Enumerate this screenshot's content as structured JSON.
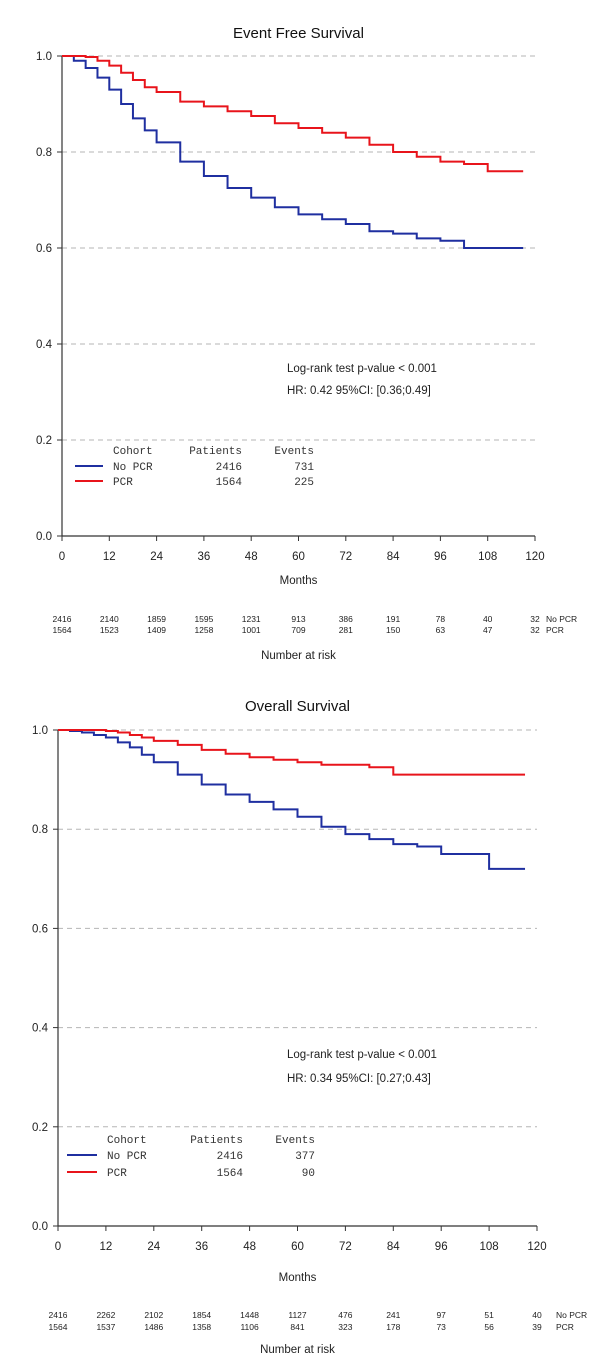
{
  "chart_data": [
    {
      "type": "line",
      "title": "Event Free Survival",
      "xlabel": "Months",
      "ylabel": "",
      "xlim": [
        0,
        120
      ],
      "ylim": [
        0,
        1
      ],
      "x_ticks": [
        "0",
        "12",
        "24",
        "36",
        "48",
        "60",
        "72",
        "84",
        "96",
        "108",
        "120"
      ],
      "y_ticks": [
        "0.0",
        "0.2",
        "0.4",
        "0.6",
        "0.8",
        "1.0"
      ],
      "grid": "horizontal dashed",
      "annotations": [
        "Log-rank test p-value < 0.001",
        "HR: 0.42  95%CI: [0.36;0.49]"
      ],
      "legend": {
        "header": [
          "Cohort",
          "Patients",
          "Events"
        ],
        "rows": [
          {
            "cohort": "No PCR",
            "patients": "2416",
            "events": "731",
            "color": "#1f2fa0"
          },
          {
            "cohort": "PCR",
            "patients": "1564",
            "events": "225",
            "color": "#e8141b"
          }
        ]
      },
      "series": [
        {
          "name": "No PCR",
          "color": "#1f2fa0",
          "x": [
            0,
            3,
            6,
            9,
            12,
            15,
            18,
            21,
            24,
            30,
            36,
            42,
            48,
            54,
            60,
            66,
            72,
            78,
            84,
            90,
            96,
            102,
            108,
            114,
            117
          ],
          "y": [
            1.0,
            0.99,
            0.975,
            0.955,
            0.93,
            0.9,
            0.87,
            0.845,
            0.82,
            0.78,
            0.75,
            0.725,
            0.705,
            0.685,
            0.67,
            0.66,
            0.65,
            0.635,
            0.63,
            0.62,
            0.615,
            0.6,
            0.6,
            0.6,
            0.6
          ]
        },
        {
          "name": "PCR",
          "color": "#e8141b",
          "x": [
            0,
            3,
            6,
            9,
            12,
            15,
            18,
            21,
            24,
            30,
            36,
            42,
            48,
            54,
            60,
            66,
            72,
            78,
            84,
            90,
            96,
            102,
            108,
            114,
            117
          ],
          "y": [
            1.0,
            1.0,
            0.998,
            0.99,
            0.98,
            0.965,
            0.95,
            0.935,
            0.925,
            0.905,
            0.895,
            0.885,
            0.875,
            0.86,
            0.85,
            0.84,
            0.83,
            0.815,
            0.8,
            0.79,
            0.78,
            0.775,
            0.76,
            0.76,
            0.76
          ]
        }
      ],
      "risk_table": {
        "label": "Number at risk",
        "rows": [
          {
            "name": "No PCR",
            "values": [
              "2416",
              "2140",
              "1859",
              "1595",
              "1231",
              "913",
              "386",
              "191",
              "78",
              "40",
              "32"
            ]
          },
          {
            "name": "PCR",
            "values": [
              "1564",
              "1523",
              "1409",
              "1258",
              "1001",
              "709",
              "281",
              "150",
              "63",
              "47",
              "32"
            ]
          }
        ]
      }
    },
    {
      "type": "line",
      "title": "Overall Survival",
      "xlabel": "Months",
      "ylabel": "",
      "xlim": [
        0,
        120
      ],
      "ylim": [
        0,
        1
      ],
      "x_ticks": [
        "0",
        "12",
        "24",
        "36",
        "48",
        "60",
        "72",
        "84",
        "96",
        "108",
        "120"
      ],
      "y_ticks": [
        "0.0",
        "0.2",
        "0.4",
        "0.6",
        "0.8",
        "1.0"
      ],
      "grid": "horizontal dashed",
      "annotations": [
        "Log-rank test p-value < 0.001",
        "HR: 0.34  95%CI: [0.27;0.43]"
      ],
      "legend": {
        "header": [
          "Cohort",
          "Patients",
          "Events"
        ],
        "rows": [
          {
            "cohort": "No PCR",
            "patients": "2416",
            "events": "377",
            "color": "#1f2fa0"
          },
          {
            "cohort": "PCR",
            "patients": "1564",
            "events": "90",
            "color": "#e8141b"
          }
        ]
      },
      "series": [
        {
          "name": "No PCR",
          "color": "#1f2fa0",
          "x": [
            0,
            3,
            6,
            9,
            12,
            15,
            18,
            21,
            24,
            30,
            36,
            42,
            48,
            54,
            60,
            66,
            72,
            78,
            84,
            90,
            96,
            102,
            105,
            108,
            114,
            117
          ],
          "y": [
            1.0,
            0.998,
            0.995,
            0.99,
            0.985,
            0.975,
            0.965,
            0.95,
            0.935,
            0.91,
            0.89,
            0.87,
            0.855,
            0.84,
            0.825,
            0.805,
            0.79,
            0.78,
            0.77,
            0.765,
            0.75,
            0.75,
            0.75,
            0.72,
            0.72,
            0.72
          ]
        },
        {
          "name": "PCR",
          "color": "#e8141b",
          "x": [
            0,
            3,
            6,
            9,
            12,
            15,
            18,
            21,
            24,
            30,
            36,
            42,
            48,
            54,
            60,
            66,
            72,
            78,
            84,
            90,
            96,
            102,
            108,
            114,
            117
          ],
          "y": [
            1.0,
            1.0,
            1.0,
            1.0,
            0.998,
            0.995,
            0.99,
            0.985,
            0.978,
            0.97,
            0.96,
            0.952,
            0.945,
            0.94,
            0.935,
            0.93,
            0.93,
            0.925,
            0.91,
            0.91,
            0.91,
            0.91,
            0.91,
            0.91,
            0.91
          ]
        }
      ],
      "risk_table": {
        "label": "Number at risk",
        "rows": [
          {
            "name": "No PCR",
            "values": [
              "2416",
              "2262",
              "2102",
              "1854",
              "1448",
              "1127",
              "476",
              "241",
              "97",
              "51",
              "40"
            ]
          },
          {
            "name": "PCR",
            "values": [
              "1564",
              "1537",
              "1486",
              "1358",
              "1106",
              "841",
              "323",
              "178",
              "73",
              "56",
              "39"
            ]
          }
        ]
      }
    }
  ]
}
